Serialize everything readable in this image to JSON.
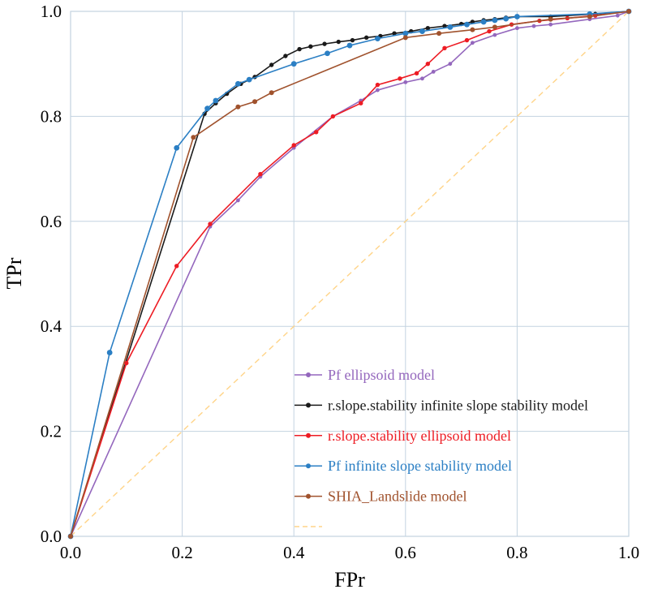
{
  "chart_data": {
    "type": "line",
    "title": "",
    "xlabel": "FPr",
    "ylabel": "TPr",
    "xlim": [
      0,
      1
    ],
    "ylim": [
      0,
      1
    ],
    "xticks": [
      0.0,
      0.2,
      0.4,
      0.6,
      0.8,
      1.0
    ],
    "yticks": [
      0.0,
      0.2,
      0.4,
      0.6,
      0.8,
      1.0
    ],
    "grid": true,
    "grid_color": "#c3d3e0",
    "legend_position": "inside-bottom-right",
    "diagonal": {
      "name": "random-classifier-reference",
      "color": "#ffd488",
      "style": "dashed",
      "points": [
        [
          0,
          0
        ],
        [
          1,
          1
        ]
      ]
    },
    "series": [
      {
        "name": "Pf ellipsoid model",
        "color": "#9467bd",
        "marker": "circle",
        "marker_size": 2.4,
        "points": [
          [
            0,
            0
          ],
          [
            0.25,
            0.59
          ],
          [
            0.3,
            0.64
          ],
          [
            0.34,
            0.685
          ],
          [
            0.4,
            0.74
          ],
          [
            0.47,
            0.8
          ],
          [
            0.52,
            0.83
          ],
          [
            0.55,
            0.85
          ],
          [
            0.6,
            0.865
          ],
          [
            0.63,
            0.872
          ],
          [
            0.65,
            0.885
          ],
          [
            0.68,
            0.9
          ],
          [
            0.72,
            0.94
          ],
          [
            0.76,
            0.955
          ],
          [
            0.8,
            0.968
          ],
          [
            0.83,
            0.972
          ],
          [
            0.86,
            0.975
          ],
          [
            0.93,
            0.985
          ],
          [
            0.98,
            0.992
          ],
          [
            1,
            1
          ]
        ]
      },
      {
        "name": "r.slope.stability infinite slope stability model",
        "color": "#1a1a1a",
        "marker": "circle",
        "marker_size": 2.7,
        "points": [
          [
            0,
            0
          ],
          [
            0.24,
            0.805
          ],
          [
            0.26,
            0.825
          ],
          [
            0.28,
            0.843
          ],
          [
            0.305,
            0.862
          ],
          [
            0.33,
            0.875
          ],
          [
            0.36,
            0.898
          ],
          [
            0.385,
            0.915
          ],
          [
            0.41,
            0.928
          ],
          [
            0.43,
            0.933
          ],
          [
            0.455,
            0.938
          ],
          [
            0.48,
            0.942
          ],
          [
            0.505,
            0.945
          ],
          [
            0.53,
            0.95
          ],
          [
            0.555,
            0.953
          ],
          [
            0.58,
            0.958
          ],
          [
            0.61,
            0.962
          ],
          [
            0.64,
            0.968
          ],
          [
            0.67,
            0.972
          ],
          [
            0.7,
            0.976
          ],
          [
            0.72,
            0.98
          ],
          [
            0.74,
            0.983
          ],
          [
            0.76,
            0.985
          ],
          [
            0.78,
            0.988
          ],
          [
            0.8,
            0.99
          ],
          [
            0.86,
            0.99
          ],
          [
            0.94,
            0.995
          ],
          [
            1,
            1
          ]
        ]
      },
      {
        "name": "r.slope.stability ellipsoid model",
        "color": "#ed1c24",
        "marker": "circle",
        "marker_size": 2.7,
        "points": [
          [
            0,
            0
          ],
          [
            0.1,
            0.33
          ],
          [
            0.19,
            0.515
          ],
          [
            0.25,
            0.595
          ],
          [
            0.34,
            0.69
          ],
          [
            0.4,
            0.745
          ],
          [
            0.44,
            0.77
          ],
          [
            0.47,
            0.8
          ],
          [
            0.52,
            0.825
          ],
          [
            0.55,
            0.86
          ],
          [
            0.59,
            0.872
          ],
          [
            0.62,
            0.882
          ],
          [
            0.64,
            0.9
          ],
          [
            0.67,
            0.93
          ],
          [
            0.71,
            0.945
          ],
          [
            0.75,
            0.962
          ],
          [
            0.79,
            0.975
          ],
          [
            0.84,
            0.982
          ],
          [
            0.89,
            0.987
          ],
          [
            0.94,
            0.992
          ],
          [
            1,
            1
          ]
        ]
      },
      {
        "name": "Pf infinite slope stability model",
        "color": "#2b7fc4",
        "marker": "circle",
        "marker_size": 3.4,
        "points": [
          [
            0,
            0
          ],
          [
            0.07,
            0.35
          ],
          [
            0.19,
            0.74
          ],
          [
            0.245,
            0.815
          ],
          [
            0.26,
            0.83
          ],
          [
            0.3,
            0.862
          ],
          [
            0.32,
            0.87
          ],
          [
            0.4,
            0.9
          ],
          [
            0.46,
            0.92
          ],
          [
            0.5,
            0.935
          ],
          [
            0.55,
            0.948
          ],
          [
            0.6,
            0.958
          ],
          [
            0.63,
            0.962
          ],
          [
            0.68,
            0.97
          ],
          [
            0.71,
            0.975
          ],
          [
            0.74,
            0.98
          ],
          [
            0.76,
            0.983
          ],
          [
            0.78,
            0.986
          ],
          [
            0.8,
            0.99
          ],
          [
            0.93,
            0.995
          ],
          [
            1,
            1
          ]
        ]
      },
      {
        "name": "SHIA_Landslide model",
        "color": "#a0522d",
        "marker": "circle",
        "marker_size": 3.0,
        "points": [
          [
            0,
            0
          ],
          [
            0.22,
            0.76
          ],
          [
            0.3,
            0.818
          ],
          [
            0.33,
            0.828
          ],
          [
            0.36,
            0.845
          ],
          [
            0.6,
            0.95
          ],
          [
            0.66,
            0.958
          ],
          [
            0.72,
            0.965
          ],
          [
            0.76,
            0.97
          ],
          [
            0.86,
            0.985
          ],
          [
            0.93,
            0.99
          ],
          [
            1,
            1
          ]
        ]
      }
    ],
    "legend": {
      "entries": [
        {
          "label": "Pf ellipsoid model",
          "color": "#9467bd",
          "marker": true,
          "dashed": false
        },
        {
          "label": "r.slope.stability infinite slope stability model",
          "color": "#1a1a1a",
          "marker": true,
          "dashed": false
        },
        {
          "label": "r.slope.stability ellipsoid model",
          "color": "#ed1c24",
          "marker": true,
          "dashed": false
        },
        {
          "label": "Pf infinite slope stability model",
          "color": "#2b7fc4",
          "marker": true,
          "dashed": false
        },
        {
          "label": "SHIA_Landslide model",
          "color": "#a0522d",
          "marker": true,
          "dashed": false
        },
        {
          "label": "",
          "color": "#ffd488",
          "marker": false,
          "dashed": true
        }
      ]
    }
  }
}
